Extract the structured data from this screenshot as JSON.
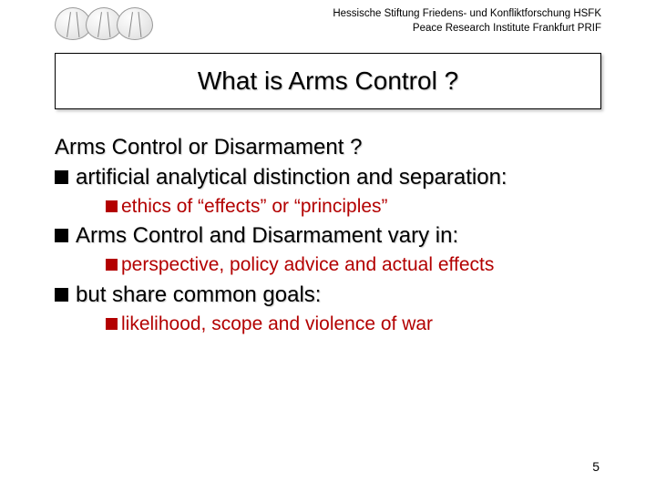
{
  "header": {
    "line1": "Hessische Stiftung Friedens- und Konfliktforschung HSFK",
    "line2": "Peace Research Institute Frankfurt PRIF"
  },
  "title": "What is Arms Control ?",
  "content": {
    "sectionHead": "Arms Control or Disarmament ?",
    "items": [
      {
        "text": "artificial analytical distinction and separation:",
        "sub": "ethics of “effects” or “principles”"
      },
      {
        "text": "Arms Control and  Disarmament vary in:",
        "sub": "perspective, policy advice and actual effects"
      },
      {
        "text": "but share common goals:",
        "sub": "likelihood, scope and violence of war"
      }
    ]
  },
  "pageNumber": "5",
  "colors": {
    "accent": "#b30000",
    "text": "#000000",
    "background": "#ffffff"
  }
}
